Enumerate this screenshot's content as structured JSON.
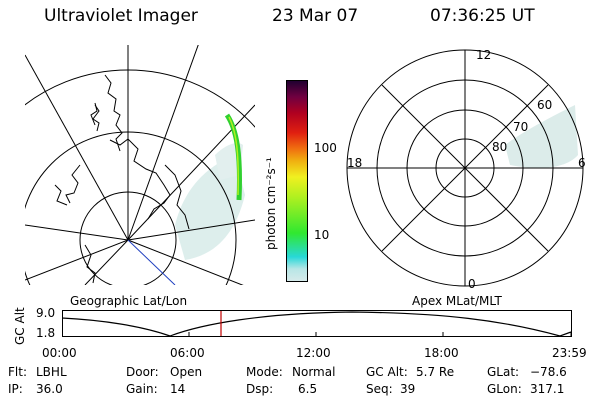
{
  "header": {
    "instrument": "Ultraviolet Imager",
    "date": "23 Mar 07",
    "time": "07:36:25 UT"
  },
  "colorbar": {
    "title": "photon cm⁻²s⁻¹",
    "ticks": [
      "100",
      "10"
    ],
    "colors": [
      "#d6eaea",
      "#28d8d8",
      "#30e830",
      "#b0f020",
      "#f0f020",
      "#f0b010",
      "#f07010",
      "#e02010",
      "#b00020",
      "#700040",
      "#200030"
    ]
  },
  "geo_map": {
    "label": "Geographic Lat/Lon"
  },
  "apex_map": {
    "label": "Apex MLat/MLT",
    "mlt_labels": {
      "top": "12",
      "bottom": "0",
      "left": "18",
      "right": "6"
    },
    "lat_labels": [
      "60",
      "70",
      "80"
    ]
  },
  "altitude_plot": {
    "ylabel": "GC Alt",
    "yticks": [
      "9.0",
      "1.8"
    ],
    "xticks": [
      "00:00",
      "06:00",
      "12:00",
      "18:00",
      "23:59"
    ],
    "marker_color": "#c00000"
  },
  "info": [
    [
      {
        "k": "Flt:",
        "v": "LBHL"
      },
      {
        "k": "Door:",
        "v": "Open"
      },
      {
        "k": "Mode:",
        "v": "Normal"
      },
      {
        "k": "GC Alt:",
        "v": "5.7 Re"
      },
      {
        "k": "GLat:",
        "v": "−78.6"
      }
    ],
    [
      {
        "k": "IP:",
        "v": "36.0"
      },
      {
        "k": "Gain:",
        "v": "14"
      },
      {
        "k": "Dsp:",
        "v": "6.5"
      },
      {
        "k": "Seq:",
        "v": "39"
      },
      {
        "k": "GLon:",
        "v": "317.1"
      }
    ]
  ]
}
